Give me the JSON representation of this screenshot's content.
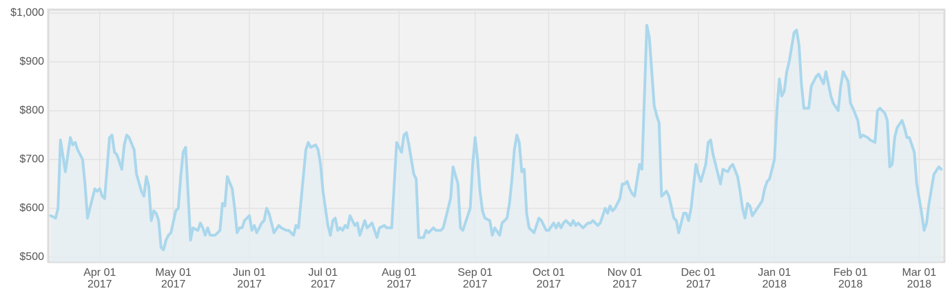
{
  "chart_data": {
    "type": "area",
    "x": [
      "2017-03-12",
      "2017-03-14",
      "2017-03-15",
      "2017-03-16",
      "2017-03-18",
      "2017-03-20",
      "2017-03-21",
      "2017-03-22",
      "2017-03-23",
      "2017-03-25",
      "2017-03-26",
      "2017-03-27",
      "2017-03-28",
      "2017-03-30",
      "2017-03-31",
      "2017-04-01",
      "2017-04-02",
      "2017-04-03",
      "2017-04-05",
      "2017-04-06",
      "2017-04-07",
      "2017-04-08",
      "2017-04-10",
      "2017-04-11",
      "2017-04-12",
      "2017-04-13",
      "2017-04-15",
      "2017-04-16",
      "2017-04-18",
      "2017-04-19",
      "2017-04-20",
      "2017-04-21",
      "2017-04-22",
      "2017-04-23",
      "2017-04-24",
      "2017-04-25",
      "2017-04-26",
      "2017-04-27",
      "2017-04-28",
      "2017-04-29",
      "2017-04-30",
      "2017-05-02",
      "2017-05-03",
      "2017-05-04",
      "2017-05-05",
      "2017-05-06",
      "2017-05-08",
      "2017-05-09",
      "2017-05-11",
      "2017-05-12",
      "2017-05-13",
      "2017-05-14",
      "2017-05-15",
      "2017-05-16",
      "2017-05-18",
      "2017-05-20",
      "2017-05-21",
      "2017-05-22",
      "2017-05-23",
      "2017-05-25",
      "2017-05-26",
      "2017-05-27",
      "2017-05-28",
      "2017-05-29",
      "2017-05-30",
      "2017-06-01",
      "2017-06-02",
      "2017-06-03",
      "2017-06-04",
      "2017-06-06",
      "2017-06-07",
      "2017-06-08",
      "2017-06-09",
      "2017-06-11",
      "2017-06-13",
      "2017-06-14",
      "2017-06-16",
      "2017-06-17",
      "2017-06-19",
      "2017-06-20",
      "2017-06-21",
      "2017-06-24",
      "2017-06-25",
      "2017-06-26",
      "2017-06-28",
      "2017-06-29",
      "2017-06-30",
      "2017-07-01",
      "2017-07-03",
      "2017-07-04",
      "2017-07-05",
      "2017-07-06",
      "2017-07-07",
      "2017-07-08",
      "2017-07-09",
      "2017-07-10",
      "2017-07-11",
      "2017-07-12",
      "2017-07-13",
      "2017-07-14",
      "2017-07-15",
      "2017-07-16",
      "2017-07-18",
      "2017-07-19",
      "2017-07-21",
      "2017-07-23",
      "2017-07-24",
      "2017-07-26",
      "2017-07-27",
      "2017-07-29",
      "2017-07-31",
      "2017-08-02",
      "2017-08-03",
      "2017-08-04",
      "2017-08-05",
      "2017-08-07",
      "2017-08-08",
      "2017-08-09",
      "2017-08-11",
      "2017-08-12",
      "2017-08-13",
      "2017-08-15",
      "2017-08-16",
      "2017-08-18",
      "2017-08-19",
      "2017-08-20",
      "2017-08-22",
      "2017-08-23",
      "2017-08-25",
      "2017-08-26",
      "2017-08-27",
      "2017-08-30",
      "2017-08-31",
      "2017-09-01",
      "2017-09-02",
      "2017-09-03",
      "2017-09-04",
      "2017-09-05",
      "2017-09-07",
      "2017-09-08",
      "2017-09-09",
      "2017-09-11",
      "2017-09-12",
      "2017-09-14",
      "2017-09-15",
      "2017-09-16",
      "2017-09-17",
      "2017-09-18",
      "2017-09-19",
      "2017-09-20",
      "2017-09-21",
      "2017-09-22",
      "2017-09-23",
      "2017-09-25",
      "2017-09-26",
      "2017-09-27",
      "2017-09-28",
      "2017-09-30",
      "2017-10-01",
      "2017-10-03",
      "2017-10-04",
      "2017-10-05",
      "2017-10-06",
      "2017-10-07",
      "2017-10-08",
      "2017-10-10",
      "2017-10-11",
      "2017-10-12",
      "2017-10-13",
      "2017-10-15",
      "2017-10-17",
      "2017-10-18",
      "2017-10-19",
      "2017-10-21",
      "2017-10-22",
      "2017-10-24",
      "2017-10-25",
      "2017-10-26",
      "2017-10-27",
      "2017-10-28",
      "2017-10-30",
      "2017-10-31",
      "2017-11-01",
      "2017-11-02",
      "2017-11-03",
      "2017-11-04",
      "2017-11-05",
      "2017-11-07",
      "2017-11-08",
      "2017-11-10",
      "2017-11-11",
      "2017-11-12",
      "2017-11-13",
      "2017-11-14",
      "2017-11-15",
      "2017-11-16",
      "2017-11-18",
      "2017-11-19",
      "2017-11-21",
      "2017-11-22",
      "2017-11-23",
      "2017-11-25",
      "2017-11-26",
      "2017-11-27",
      "2017-11-28",
      "2017-11-30",
      "2017-12-01",
      "2017-12-02",
      "2017-12-04",
      "2017-12-05",
      "2017-12-06",
      "2017-12-07",
      "2017-12-09",
      "2017-12-10",
      "2017-12-11",
      "2017-12-13",
      "2017-12-14",
      "2017-12-15",
      "2017-12-17",
      "2017-12-18",
      "2017-12-19",
      "2017-12-20",
      "2017-12-21",
      "2017-12-22",
      "2017-12-23",
      "2017-12-25",
      "2017-12-27",
      "2017-12-28",
      "2017-12-29",
      "2017-12-30",
      "2018-01-01",
      "2018-01-02",
      "2018-01-03",
      "2018-01-04",
      "2018-01-05",
      "2018-01-06",
      "2018-01-07",
      "2018-01-09",
      "2018-01-10",
      "2018-01-11",
      "2018-01-12",
      "2018-01-13",
      "2018-01-15",
      "2018-01-16",
      "2018-01-18",
      "2018-01-19",
      "2018-01-21",
      "2018-01-22",
      "2018-01-24",
      "2018-01-25",
      "2018-01-27",
      "2018-01-28",
      "2018-01-29",
      "2018-01-31",
      "2018-02-01",
      "2018-02-02",
      "2018-02-04",
      "2018-02-05",
      "2018-02-06",
      "2018-02-08",
      "2018-02-09",
      "2018-02-11",
      "2018-02-12",
      "2018-02-13",
      "2018-02-15",
      "2018-02-16",
      "2018-02-17",
      "2018-02-18",
      "2018-02-19",
      "2018-02-20",
      "2018-02-22",
      "2018-02-23",
      "2018-02-24",
      "2018-02-25",
      "2018-02-27",
      "2018-02-28",
      "2018-03-02",
      "2018-03-03",
      "2018-03-04",
      "2018-03-05",
      "2018-03-06",
      "2018-03-07",
      "2018-03-09",
      "2018-03-10"
    ],
    "values": [
      585,
      580,
      600,
      740,
      675,
      745,
      730,
      735,
      720,
      700,
      650,
      580,
      600,
      640,
      635,
      640,
      625,
      620,
      745,
      750,
      715,
      710,
      680,
      730,
      750,
      745,
      720,
      670,
      635,
      625,
      665,
      645,
      575,
      595,
      590,
      575,
      520,
      515,
      535,
      545,
      550,
      595,
      600,
      665,
      715,
      725,
      535,
      560,
      555,
      570,
      560,
      545,
      560,
      545,
      545,
      555,
      610,
      605,
      665,
      640,
      600,
      550,
      560,
      560,
      575,
      585,
      555,
      565,
      550,
      570,
      575,
      600,
      590,
      550,
      565,
      560,
      555,
      555,
      545,
      565,
      560,
      720,
      735,
      725,
      730,
      720,
      690,
      635,
      565,
      545,
      575,
      580,
      555,
      560,
      555,
      565,
      560,
      585,
      575,
      565,
      570,
      545,
      575,
      560,
      570,
      540,
      560,
      565,
      560,
      560,
      735,
      715,
      750,
      755,
      730,
      670,
      660,
      540,
      540,
      555,
      550,
      560,
      555,
      555,
      560,
      580,
      620,
      685,
      650,
      560,
      555,
      600,
      690,
      745,
      700,
      635,
      595,
      580,
      575,
      545,
      560,
      545,
      570,
      580,
      610,
      660,
      720,
      750,
      735,
      675,
      680,
      590,
      560,
      550,
      565,
      580,
      575,
      555,
      555,
      570,
      560,
      570,
      560,
      570,
      575,
      565,
      575,
      565,
      570,
      560,
      570,
      570,
      575,
      565,
      570,
      600,
      590,
      605,
      595,
      600,
      620,
      650,
      650,
      655,
      640,
      630,
      625,
      690,
      680,
      975,
      950,
      880,
      810,
      790,
      775,
      625,
      635,
      625,
      580,
      575,
      550,
      590,
      590,
      575,
      600,
      690,
      670,
      655,
      690,
      735,
      740,
      710,
      670,
      650,
      680,
      675,
      685,
      690,
      665,
      635,
      600,
      580,
      610,
      605,
      585,
      600,
      615,
      640,
      655,
      660,
      700,
      800,
      865,
      830,
      840,
      880,
      900,
      960,
      965,
      935,
      855,
      805,
      805,
      850,
      870,
      875,
      855,
      880,
      830,
      815,
      800,
      850,
      880,
      860,
      815,
      805,
      780,
      745,
      750,
      745,
      740,
      735,
      800,
      805,
      795,
      780,
      685,
      690,
      745,
      765,
      780,
      765,
      745,
      745,
      715,
      650,
      590,
      555,
      570,
      610,
      640,
      670,
      685,
      680
    ],
    "color": "#aad7ec",
    "area_color": "#e3edf3",
    "xlim": [
      "2017-03-11",
      "2018-03-11"
    ],
    "xticks": [
      {
        "value": "2017-04-01",
        "label": [
          "Apr 01",
          "2017"
        ]
      },
      {
        "value": "2017-05-01",
        "label": [
          "May 01",
          "2017"
        ]
      },
      {
        "value": "2017-06-01",
        "label": [
          "Jun 01",
          "2017"
        ]
      },
      {
        "value": "2017-07-01",
        "label": [
          "Jul 01",
          "2017"
        ]
      },
      {
        "value": "2017-08-01",
        "label": [
          "Aug 01",
          "2017"
        ]
      },
      {
        "value": "2017-09-01",
        "label": [
          "Sep 01",
          "2017"
        ]
      },
      {
        "value": "2017-10-01",
        "label": [
          "Oct 01",
          "2017"
        ]
      },
      {
        "value": "2017-11-01",
        "label": [
          "Nov 01",
          "2017"
        ]
      },
      {
        "value": "2017-12-01",
        "label": [
          "Dec 01",
          "2017"
        ]
      },
      {
        "value": "2018-01-01",
        "label": [
          "Jan 01",
          "2018"
        ]
      },
      {
        "value": "2018-02-01",
        "label": [
          "Feb 01",
          "2018"
        ]
      },
      {
        "value": "2018-03-01",
        "label": [
          "Mar 01",
          "2018"
        ]
      }
    ],
    "ylim": [
      490,
      1007
    ],
    "yticks": [
      {
        "value": 500,
        "label": "$500"
      },
      {
        "value": 600,
        "label": "$600"
      },
      {
        "value": 700,
        "label": "$700"
      },
      {
        "value": 800,
        "label": "$800"
      },
      {
        "value": 900,
        "label": "$900"
      },
      {
        "value": 1000,
        "label": "$1,000"
      }
    ],
    "grid": true
  }
}
